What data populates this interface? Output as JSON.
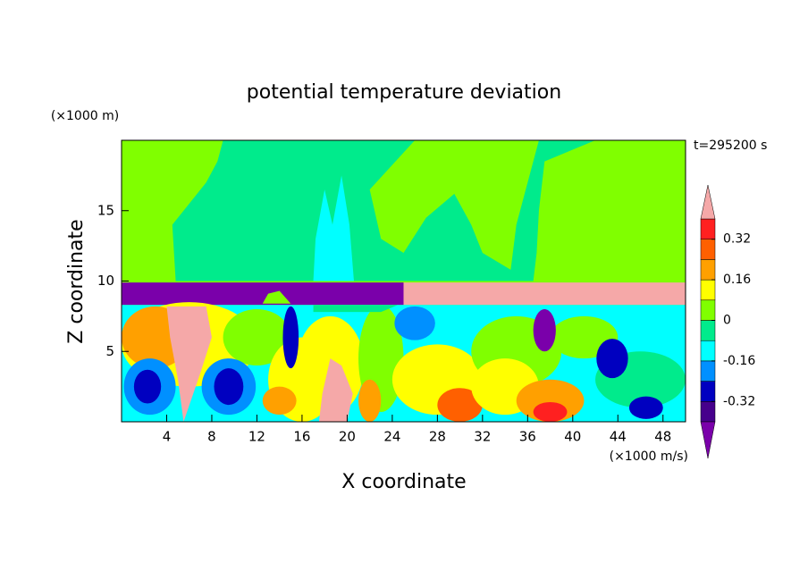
{
  "chart_data": {
    "type": "contour",
    "title": "potential temperature deviation",
    "y_unit_label": "(×1000 m)",
    "x_unit_label": "(×1000 m/s)",
    "time_label": "t=295200 s",
    "xlabel": "X coordinate",
    "ylabel": "Z coordinate",
    "xlim": [
      0,
      50
    ],
    "xticks": [
      4,
      8,
      12,
      16,
      20,
      24,
      28,
      32,
      36,
      40,
      44,
      48
    ],
    "ylim": [
      0,
      20
    ],
    "yticks": [
      5,
      10,
      15
    ],
    "colorbar": {
      "lim": [
        -0.4,
        0.4
      ],
      "ticks": [
        -0.32,
        -0.16,
        0,
        0.16,
        0.32
      ],
      "under_color": "#7a00aa",
      "over_color": "#f5a8a8",
      "colors": [
        "#46008c",
        "#0000c0",
        "#0090ff",
        "#00ffff",
        "#00eb8c",
        "#80ff00",
        "#ffff00",
        "#ffa000",
        "#ff6000",
        "#ff2020"
      ]
    }
  }
}
